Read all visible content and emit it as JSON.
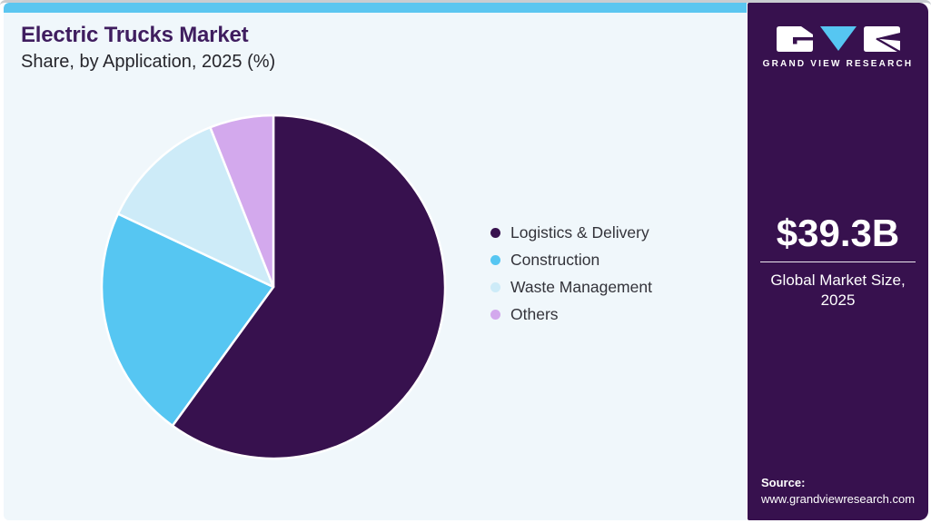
{
  "header": {
    "title": "Electric Trucks Market",
    "subtitle": "Share, by Application, 2025 (%)"
  },
  "chart_data": {
    "type": "pie",
    "title": "Electric Trucks Market Share, by Application, 2025 (%)",
    "labels": [
      "Logistics & Delivery",
      "Construction",
      "Waste Management",
      "Others"
    ],
    "values": [
      60,
      22,
      12,
      6
    ],
    "unit": "%",
    "colors": [
      "#37114E",
      "#56C6F2",
      "#CDEBF8",
      "#D3A9ED"
    ],
    "start_angle_deg": 0,
    "direction": "clockwise",
    "legend_position": "right"
  },
  "sidebar": {
    "brand": "GRAND VIEW RESEARCH",
    "market_size_value": "$39.3B",
    "market_size_caption": "Global Market Size, 2025",
    "source_label": "Source:",
    "source_url": "www.grandviewresearch.com",
    "background": "#37114E"
  },
  "theme": {
    "topbar_color": "#5BC6F0",
    "content_background": "#F0F7FB",
    "title_color": "#3F1D5F",
    "text_color": "#33333A",
    "accent_blue": "#56C6F2"
  }
}
